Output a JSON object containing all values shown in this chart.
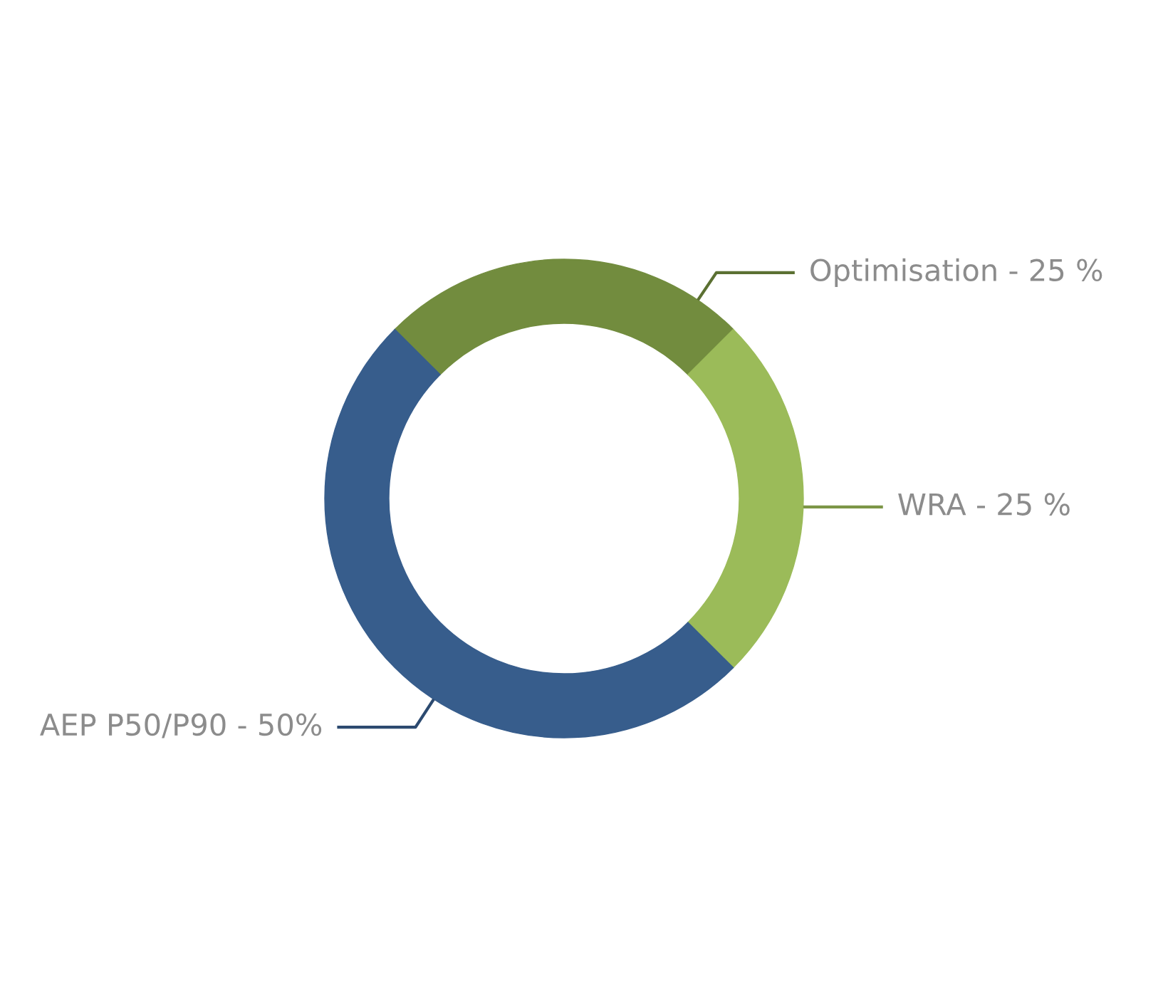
{
  "chart_data": {
    "type": "donut",
    "categories": [
      "Optimisation - 25 %",
      "WRA - 25 %",
      "AEP P50/P90 - 50%"
    ],
    "values": [
      25,
      25,
      50
    ],
    "colors": [
      "#728c3e",
      "#9bbb59",
      "#375d8c"
    ]
  }
}
